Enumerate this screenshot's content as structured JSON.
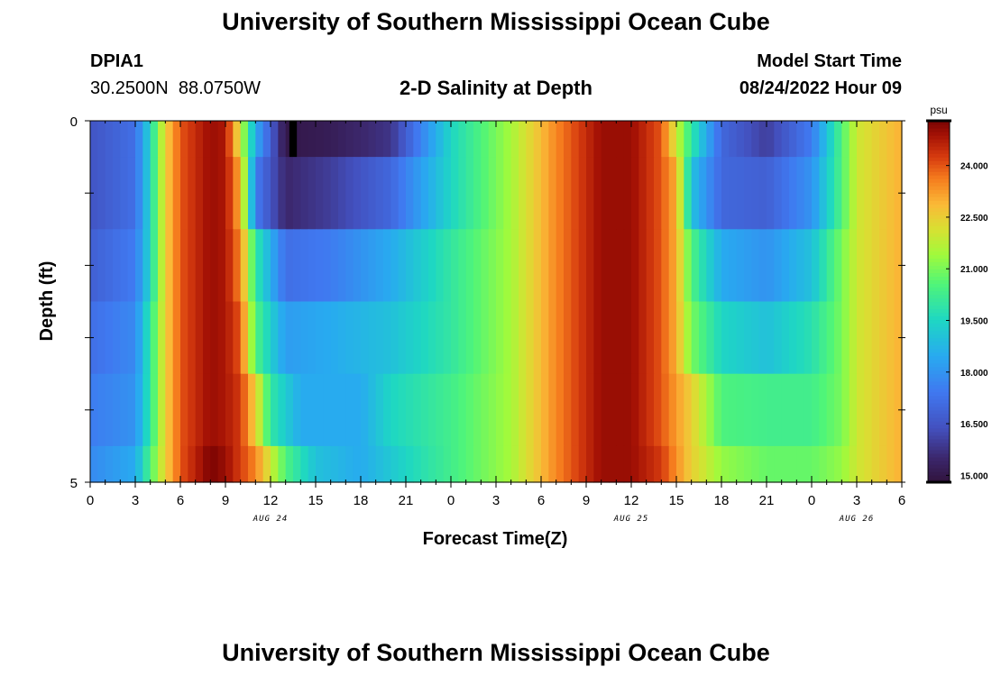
{
  "page": {
    "title_top": "University of Southern Mississippi Ocean Cube",
    "title_bottom": "University of Southern Mississippi Ocean Cube",
    "station_id": "DPIA1",
    "station_coords": "30.2500N  88.0750W",
    "plot_title": "2-D Salinity at Depth",
    "model_start_label": "Model Start Time",
    "model_start_value": "08/24/2022 Hour 09"
  },
  "chart_data": {
    "type": "heatmap",
    "title": "2-D Salinity at Depth",
    "xlabel": "Forecast Time(Z)",
    "ylabel": "Depth (ft)",
    "xlim_hours": [
      0,
      54
    ],
    "ylim": [
      0,
      5
    ],
    "y_ticks": [
      "0",
      "5"
    ],
    "x_ticks": [
      "0",
      "3",
      "6",
      "9",
      "12",
      "15",
      "18",
      "21",
      "0",
      "3",
      "6",
      "9",
      "12",
      "15",
      "18",
      "21",
      "0",
      "3",
      "6"
    ],
    "date_labels": [
      {
        "label": "AUG 24",
        "hour": 12
      },
      {
        "label": "AUG 25",
        "hour": 36
      },
      {
        "label": "AUG 26",
        "hour": 51
      }
    ],
    "colorbar": {
      "unit": "psu",
      "min": 14.8,
      "max": 25.3,
      "ticks": [
        "24.000",
        "22.500",
        "21.000",
        "19.500",
        "18.000",
        "16.500",
        "15.000"
      ],
      "tick_values": [
        24.0,
        22.5,
        21.0,
        19.5,
        18.0,
        16.5,
        15.0
      ]
    },
    "depth_layers": [
      {
        "depth_range": [
          0.0,
          0.5
        ],
        "key_hours": [
          0,
          3,
          4,
          5,
          6,
          8,
          9,
          10,
          11,
          13,
          16,
          20,
          24,
          28,
          31,
          34,
          36,
          38,
          40,
          42,
          45,
          48,
          50,
          51,
          54
        ],
        "salinity": [
          16.5,
          17.2,
          19.5,
          22.5,
          24.0,
          25.0,
          24.8,
          22.0,
          18.5,
          15.0,
          15.2,
          15.8,
          19.5,
          21.5,
          23.5,
          25.0,
          25.0,
          24.0,
          20.0,
          17.0,
          16.0,
          17.5,
          20.5,
          22.0,
          23.0
        ]
      },
      {
        "depth_range": [
          0.5,
          1.5
        ],
        "key_hours": [
          0,
          3,
          4,
          5,
          6,
          8,
          9,
          10,
          11,
          13,
          16,
          20,
          24,
          28,
          31,
          34,
          36,
          38,
          39,
          40,
          42,
          45,
          48,
          50,
          51,
          54
        ],
        "salinity": [
          16.5,
          17.2,
          19.5,
          22.5,
          24.0,
          25.0,
          24.8,
          23.0,
          17.5,
          15.5,
          16.0,
          17.0,
          19.5,
          21.5,
          23.5,
          25.0,
          25.0,
          24.0,
          23.0,
          19.0,
          17.0,
          16.8,
          18.0,
          20.5,
          22.0,
          23.0
        ]
      },
      {
        "depth_range": [
          1.5,
          2.5
        ],
        "key_hours": [
          0,
          3,
          4,
          5,
          6,
          8,
          9,
          10,
          11,
          13,
          16,
          20,
          24,
          28,
          31,
          34,
          36,
          38,
          39,
          40,
          42,
          45,
          48,
          50,
          51,
          54
        ],
        "salinity": [
          16.8,
          17.5,
          19.5,
          22.5,
          24.0,
          25.0,
          24.8,
          23.5,
          20.0,
          17.2,
          17.5,
          18.5,
          20.0,
          21.5,
          23.5,
          25.0,
          25.0,
          24.0,
          23.0,
          20.5,
          18.5,
          18.0,
          19.0,
          21.0,
          22.0,
          23.0
        ]
      },
      {
        "depth_range": [
          2.5,
          3.5
        ],
        "key_hours": [
          0,
          3,
          4,
          5,
          6,
          8,
          9,
          10,
          11,
          13,
          16,
          20,
          24,
          28,
          31,
          34,
          36,
          38,
          39,
          40,
          42,
          45,
          48,
          50,
          51,
          54
        ],
        "salinity": [
          17.2,
          17.8,
          20.0,
          22.5,
          24.0,
          25.0,
          24.8,
          24.0,
          20.5,
          18.2,
          18.5,
          19.0,
          20.0,
          21.5,
          23.5,
          25.0,
          25.0,
          24.0,
          23.0,
          21.0,
          19.5,
          19.0,
          19.8,
          21.0,
          22.0,
          23.0
        ]
      },
      {
        "depth_range": [
          3.5,
          4.5
        ],
        "key_hours": [
          0,
          3,
          4,
          5,
          6,
          8,
          9,
          10,
          11,
          12,
          14,
          18,
          20,
          24,
          28,
          31,
          34,
          36,
          38,
          40,
          41,
          42,
          45,
          48,
          50,
          51,
          54
        ],
        "salinity": [
          17.5,
          18.0,
          20.0,
          22.5,
          24.0,
          25.0,
          24.8,
          24.3,
          22.5,
          20.0,
          18.5,
          18.5,
          19.5,
          20.3,
          21.5,
          23.5,
          25.0,
          25.0,
          24.0,
          22.5,
          21.5,
          20.5,
          20.3,
          20.3,
          21.0,
          22.0,
          23.0
        ]
      },
      {
        "depth_range": [
          4.5,
          5.0
        ],
        "key_hours": [
          0,
          3,
          4,
          5,
          6,
          8,
          9,
          11,
          12,
          13,
          15,
          18,
          21,
          24,
          28,
          31,
          34,
          36,
          38,
          40,
          42,
          45,
          48,
          50,
          51,
          54
        ],
        "salinity": [
          17.8,
          18.5,
          20.5,
          22.5,
          24.0,
          25.3,
          25.0,
          23.5,
          22.0,
          20.5,
          19.0,
          18.5,
          19.5,
          20.3,
          21.5,
          23.5,
          25.0,
          25.0,
          24.3,
          22.5,
          21.3,
          20.8,
          20.8,
          21.3,
          22.0,
          23.0
        ]
      }
    ],
    "missing_cells": [
      {
        "hour_range": [
          13.25,
          13.75
        ],
        "depth_range": [
          0.0,
          0.5
        ]
      }
    ]
  }
}
